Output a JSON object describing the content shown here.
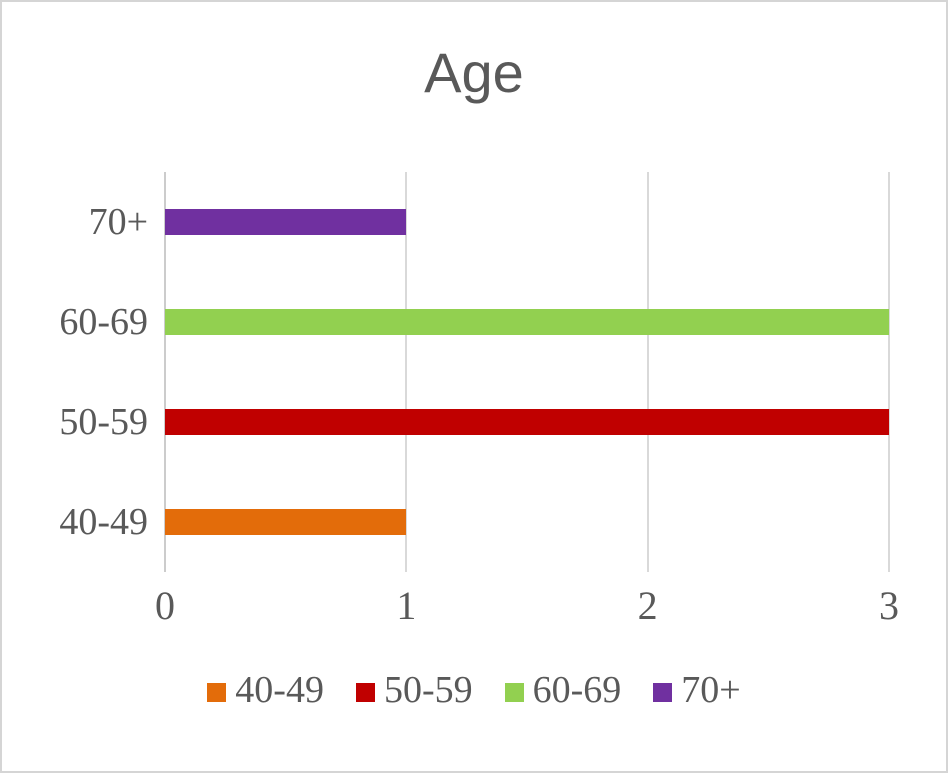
{
  "chart_data": {
    "type": "bar",
    "orientation": "horizontal",
    "title": "Age",
    "categories": [
      "40-49",
      "50-59",
      "60-69",
      "70+"
    ],
    "values": [
      1,
      3,
      3,
      1
    ],
    "colors": [
      "#e36c0a",
      "#c00000",
      "#92d050",
      "#7030a0"
    ],
    "category_axis_order": "bottom-to-top",
    "xlabel": "",
    "ylabel": "",
    "xlim": [
      0,
      3
    ],
    "x_ticks": [
      0,
      1,
      2,
      3
    ],
    "grid": "vertical-only",
    "gridline_color": "#d9d9d9",
    "text_color": "#595959",
    "legend": [
      "40-49",
      "50-59",
      "60-69",
      "70+"
    ],
    "legend_position": "bottom"
  }
}
